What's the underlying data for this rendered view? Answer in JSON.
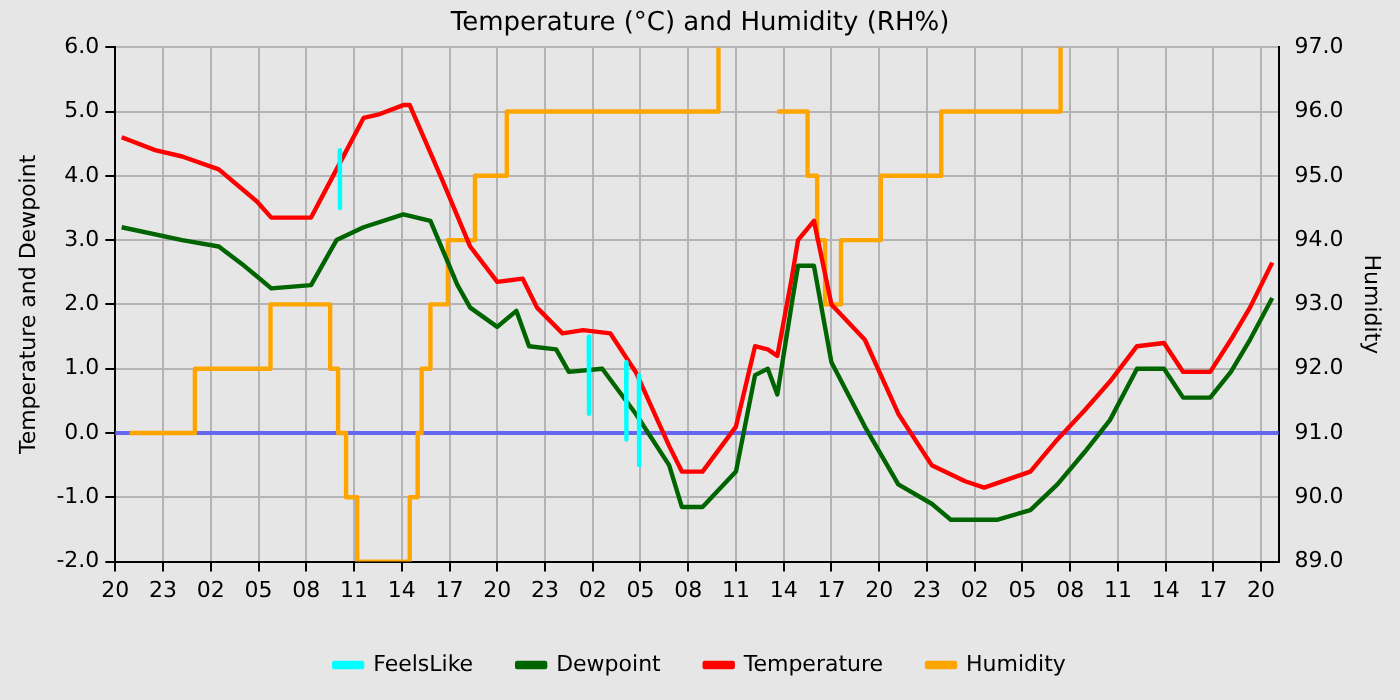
{
  "chart_data": {
    "type": "line",
    "title": "Temperature (°C) and Humidity (RH%)",
    "ylabel": "Temperature and Dewpoint",
    "y2label": "Humidity",
    "xlim": [
      "--01-01T20:00",
      "--01-04T21:06"
    ],
    "xticks": [
      {
        "value": "--01-01T20:00",
        "label": "20"
      },
      {
        "value": "--01-01T23:00",
        "label": "23"
      },
      {
        "value": "--01-02T02:00",
        "label": "02"
      },
      {
        "value": "--01-02T05:00",
        "label": "05"
      },
      {
        "value": "--01-02T08:00",
        "label": "08"
      },
      {
        "value": "--01-02T11:00",
        "label": "11"
      },
      {
        "value": "--01-02T14:00",
        "label": "14"
      },
      {
        "value": "--01-02T17:00",
        "label": "17"
      },
      {
        "value": "--01-02T20:00",
        "label": "20"
      },
      {
        "value": "--01-02T23:00",
        "label": "23"
      },
      {
        "value": "--01-03T02:00",
        "label": "02"
      },
      {
        "value": "--01-03T05:00",
        "label": "05"
      },
      {
        "value": "--01-03T08:00",
        "label": "08"
      },
      {
        "value": "--01-03T11:00",
        "label": "11"
      },
      {
        "value": "--01-03T14:00",
        "label": "14"
      },
      {
        "value": "--01-03T17:00",
        "label": "17"
      },
      {
        "value": "--01-03T20:00",
        "label": "20"
      },
      {
        "value": "--01-03T23:00",
        "label": "23"
      },
      {
        "value": "--01-04T02:00",
        "label": "02"
      },
      {
        "value": "--01-04T05:00",
        "label": "05"
      },
      {
        "value": "--01-04T08:00",
        "label": "08"
      },
      {
        "value": "--01-04T11:00",
        "label": "11"
      },
      {
        "value": "--01-04T14:00",
        "label": "14"
      },
      {
        "value": "--01-04T17:00",
        "label": "17"
      },
      {
        "value": "--01-04T20:00",
        "label": "20"
      }
    ],
    "ylim": [
      -2,
      6
    ],
    "yticks": [
      {
        "value": -2,
        "label": "-2.0"
      },
      {
        "value": -1,
        "label": "-1.0"
      },
      {
        "value": 0,
        "label": "0.0"
      },
      {
        "value": 1,
        "label": "1.0"
      },
      {
        "value": 2,
        "label": "2.0"
      },
      {
        "value": 3,
        "label": "3.0"
      },
      {
        "value": 4,
        "label": "4.0"
      },
      {
        "value": 5,
        "label": "5.0"
      },
      {
        "value": 6,
        "label": "6.0"
      }
    ],
    "y2lim": [
      89,
      97
    ],
    "y2ticks": [
      {
        "value": 89,
        "label": "89.0"
      },
      {
        "value": 90,
        "label": "90.0"
      },
      {
        "value": 91,
        "label": "91.0"
      },
      {
        "value": 92,
        "label": "92.0"
      },
      {
        "value": 93,
        "label": "93.0"
      },
      {
        "value": 94,
        "label": "94.0"
      },
      {
        "value": 95,
        "label": "95.0"
      },
      {
        "value": 96,
        "label": "96.0"
      },
      {
        "value": 97,
        "label": "97.0"
      }
    ],
    "grid": true,
    "legend": "bottom",
    "ref_lines": [
      {
        "axis": "y",
        "value": 0,
        "color": "#6666ee"
      }
    ],
    "series": [
      {
        "name": "FeelsLike",
        "color": "#00ffff",
        "x": [
          "--01-02T10:06",
          "--01-02T10:07",
          "--01-02T10:08",
          "--01-03T01:45",
          "--01-03T01:46",
          "--01-03T01:47",
          "--01-03T04:06",
          "--01-03T04:07",
          "--01-03T04:08",
          "--01-03T04:54",
          "--01-03T04:55"
        ],
        "values": [
          4.4,
          3.5,
          null,
          1.5,
          0.3,
          null,
          1.1,
          -0.1,
          null,
          0.9,
          -0.5
        ]
      },
      {
        "name": "Dewpoint",
        "color": "#006400",
        "x": [
          "--01-01T20:24",
          "--01-02T00:12",
          "--01-02T02:30",
          "--01-02T04:06",
          "--01-02T05:48",
          "--01-02T08:18",
          "--01-02T09:54",
          "--01-02T11:36",
          "--01-02T14:06",
          "--01-02T15:48",
          "--01-02T17:30",
          "--01-02T18:18",
          "--01-02T20:00",
          "--01-02T21:12",
          "--01-02T22:00",
          "--01-02T23:42",
          "--01-03T00:30",
          "--01-03T02:36",
          "--01-03T04:42",
          "--01-03T06:48",
          "--01-03T07:36",
          "--01-03T08:54",
          "--01-03T11:00",
          "--01-03T12:12",
          "--01-03T13:00",
          "--01-03T13:36",
          "--01-03T14:30",
          "--01-03T14:54",
          "--01-03T15:54",
          "--01-03T17:00",
          "--01-03T19:06",
          "--01-03T21:12",
          "--01-03T23:18",
          "--01-04T00:30",
          "--01-04T03:24",
          "--01-04T05:30",
          "--01-04T07:12",
          "--01-04T08:54",
          "--01-04T10:30",
          "--01-04T12:12",
          "--01-04T13:54",
          "--01-04T15:06",
          "--01-04T16:48",
          "--01-04T18:06",
          "--01-04T19:18",
          "--01-04T20:42"
        ],
        "values": [
          3.2,
          3.0,
          2.9,
          2.6,
          2.25,
          2.3,
          3.0,
          3.2,
          3.4,
          3.3,
          2.3,
          1.95,
          1.65,
          1.9,
          1.35,
          1.3,
          0.95,
          1.0,
          0.3,
          -0.5,
          -1.15,
          -1.15,
          -0.6,
          0.9,
          1.0,
          0.6,
          2.0,
          2.6,
          2.6,
          1.1,
          0.1,
          -0.8,
          -1.1,
          -1.35,
          -1.35,
          -1.2,
          -0.8,
          -0.3,
          0.2,
          1.0,
          1.0,
          0.55,
          0.55,
          0.95,
          1.45,
          2.1
        ]
      },
      {
        "name": "Temperature",
        "color": "#ff0000",
        "x": [
          "--01-01T20:24",
          "--01-01T22:30",
          "--01-02T00:12",
          "--01-02T02:30",
          "--01-02T04:54",
          "--01-02T05:48",
          "--01-02T08:18",
          "--01-02T09:54",
          "--01-02T11:36",
          "--01-02T12:30",
          "--01-02T14:06",
          "--01-02T14:30",
          "--01-02T16:36",
          "--01-02T18:18",
          "--01-02T20:00",
          "--01-02T21:36",
          "--01-02T22:30",
          "--01-03T00:06",
          "--01-03T01:24",
          "--01-03T03:06",
          "--01-03T04:42",
          "--01-03T06:48",
          "--01-03T07:36",
          "--01-03T08:54",
          "--01-03T11:00",
          "--01-03T12:12",
          "--01-03T13:00",
          "--01-03T13:36",
          "--01-03T14:30",
          "--01-03T14:54",
          "--01-03T15:54",
          "--01-03T17:00",
          "--01-03T19:06",
          "--01-03T21:12",
          "--01-03T23:18",
          "--01-04T01:24",
          "--01-04T02:36",
          "--01-04T05:30",
          "--01-04T07:12",
          "--01-04T08:54",
          "--01-04T10:30",
          "--01-04T12:12",
          "--01-04T13:54",
          "--01-04T15:06",
          "--01-04T16:48",
          "--01-04T18:06",
          "--01-04T19:18",
          "--01-04T20:42"
        ],
        "values": [
          4.6,
          4.4,
          4.3,
          4.1,
          3.6,
          3.35,
          3.35,
          4.1,
          4.9,
          4.95,
          5.1,
          5.1,
          3.9,
          2.9,
          2.35,
          2.4,
          1.95,
          1.55,
          1.6,
          1.55,
          0.95,
          -0.2,
          -0.6,
          -0.6,
          0.1,
          1.35,
          1.3,
          1.2,
          2.4,
          3.0,
          3.3,
          2.0,
          1.45,
          0.3,
          -0.5,
          -0.75,
          -0.85,
          -0.6,
          -0.1,
          0.35,
          0.8,
          1.35,
          1.4,
          0.95,
          0.95,
          1.45,
          1.95,
          2.65
        ]
      },
      {
        "name": "Humidity",
        "type": "step",
        "axis": "y2",
        "color": "#ffa500",
        "x": [
          "--01-01T20:54",
          "--01-02T01:00",
          "--01-02T01:54",
          "--01-02T05:45",
          "--01-02T09:30",
          "--01-02T10:00",
          "--01-02T10:30",
          "--01-02T11:12",
          "--01-02T14:30",
          "--01-02T15:00",
          "--01-02T15:15",
          "--01-02T15:48",
          "--01-02T16:54",
          "--01-02T18:36",
          "--01-02T20:36",
          "--01-03T09:54",
          "--01-03T10:24",
          "--01-03T13:36",
          "--01-03T15:06",
          "--01-03T15:30",
          "--01-03T16:06",
          "--01-03T16:36",
          "--01-03T17:36",
          "--01-03T20:06",
          "--01-03T23:54",
          "--01-04T07:24"
        ],
        "values": [
          91,
          92,
          92,
          93,
          92,
          91,
          90,
          89,
          90,
          91,
          92,
          93,
          94,
          95,
          96,
          97,
          null,
          96,
          96,
          95,
          94,
          93,
          94,
          95,
          96,
          97
        ]
      }
    ]
  }
}
